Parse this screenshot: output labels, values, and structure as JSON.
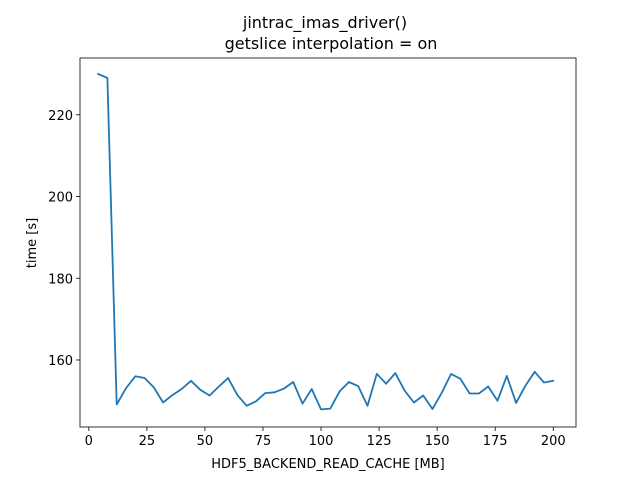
{
  "chart_data": {
    "type": "line",
    "title": "jintrac_imas_driver()",
    "subtitle": "getslice interpolation = on",
    "xlabel": "HDF5_BACKEND_READ_CACHE [MB]",
    "ylabel": "time [s]",
    "xlim": [
      -3.8,
      209.8
    ],
    "ylim": [
      143.6,
      233.9
    ],
    "xticks": [
      0,
      25,
      50,
      75,
      100,
      125,
      150,
      175,
      200
    ],
    "yticks": [
      160,
      180,
      200,
      220
    ],
    "grid": false,
    "series": [
      {
        "color": "#1f77b4",
        "x": [
          4,
          8,
          12,
          16,
          20,
          24,
          28,
          32,
          36,
          40,
          44,
          48,
          52,
          56,
          60,
          64,
          68,
          72,
          76,
          80,
          84,
          88,
          92,
          96,
          100,
          104,
          108,
          112,
          116,
          120,
          124,
          128,
          132,
          136,
          140,
          144,
          148,
          152,
          156,
          160,
          164,
          168,
          172,
          176,
          180,
          184,
          188,
          192,
          196,
          200
        ],
        "y": [
          230.0,
          229.0,
          149.1,
          153.1,
          156.0,
          155.6,
          153.3,
          149.6,
          151.4,
          152.9,
          154.9,
          152.7,
          151.3,
          153.5,
          155.6,
          151.4,
          148.8,
          149.9,
          151.9,
          152.1,
          153.0,
          154.6,
          149.3,
          152.9,
          147.9,
          148.1,
          152.3,
          154.6,
          153.6,
          148.8,
          156.6,
          154.2,
          156.8,
          152.5,
          149.6,
          151.3,
          148.0,
          152.0,
          156.6,
          155.4,
          151.8,
          151.8,
          153.5,
          150.0,
          156.1,
          149.5,
          153.7,
          157.1,
          154.5,
          154.9
        ]
      }
    ]
  }
}
